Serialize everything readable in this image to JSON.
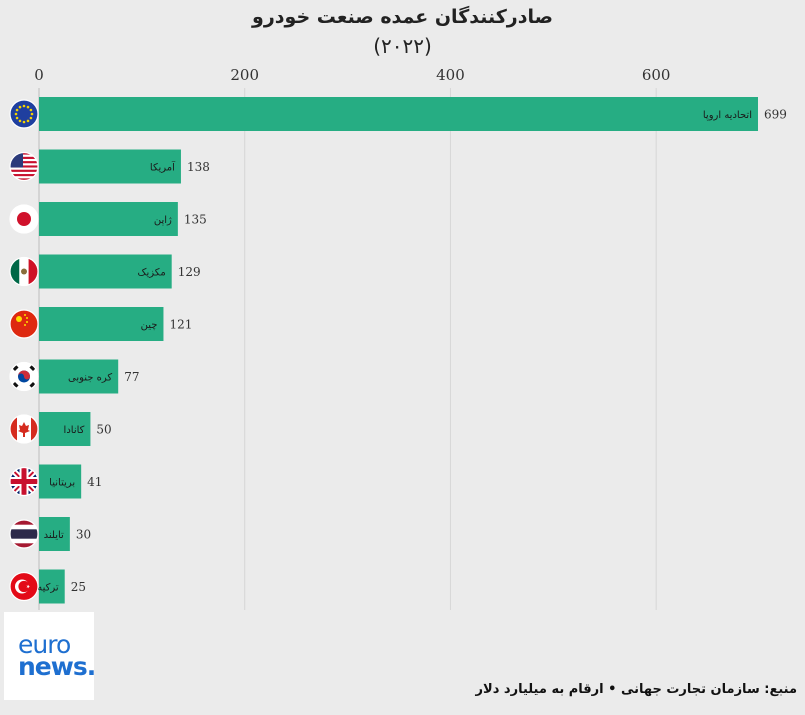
{
  "chart_data": {
    "type": "bar",
    "orientation": "horizontal",
    "title": "صادرکنندگان عمده صنعت خودرو",
    "subtitle": "(۲۰۲۲)",
    "xlim": [
      0,
      700
    ],
    "ticks": [
      "0",
      "200",
      "400",
      "600"
    ],
    "tick_values": [
      0,
      200,
      400,
      600
    ],
    "grid": true,
    "bar_color": "#26ad83",
    "categories": [
      "اتحادیه اروپا",
      "آمریکا",
      "ژاپن",
      "مکزیک",
      "چین",
      "کره جنوبی",
      "کانادا",
      "بریتانیا",
      "تایلند",
      "ترکیه"
    ],
    "values": [
      699,
      138,
      135,
      129,
      121,
      77,
      50,
      41,
      30,
      25
    ],
    "value_labels": [
      "699",
      "138",
      "135",
      "129",
      "121",
      "77",
      "50",
      "41",
      "30",
      "25"
    ],
    "flags": [
      "eu-flag-icon",
      "us-flag-icon",
      "japan-flag-icon",
      "mexico-flag-icon",
      "china-flag-icon",
      "south-korea-flag-icon",
      "canada-flag-icon",
      "uk-flag-icon",
      "thailand-flag-icon",
      "turkey-flag-icon"
    ]
  },
  "logo": {
    "line1": "euro",
    "line2": "news."
  },
  "source": "منبع: سازمان تجارت جهانی • ارقام به میلیارد دلار"
}
